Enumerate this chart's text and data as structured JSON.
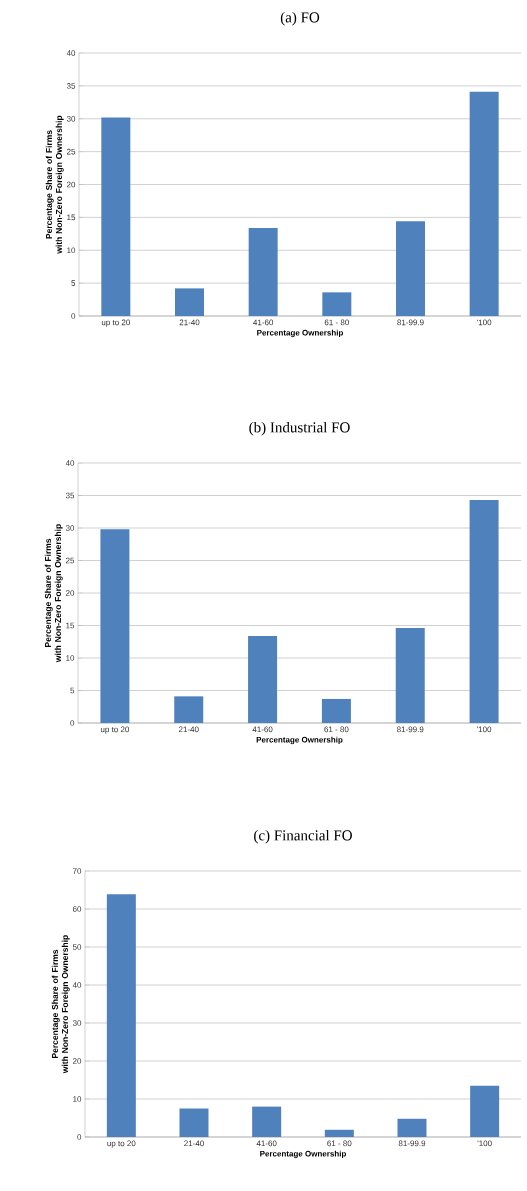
{
  "chart_data": [
    {
      "type": "bar",
      "title": "(a) FO",
      "xlabel": "Percentage Ownership",
      "ylabel": "Percentage Share of Firms\nwith Non-Zero Foreign Ownership",
      "categories": [
        "up to 20",
        "21-40",
        "41-60",
        "61 - 80",
        "81-99.9",
        "'100"
      ],
      "values": [
        30.2,
        4.2,
        13.4,
        3.6,
        14.4,
        34.1
      ],
      "color": "#4f81bd",
      "ylim": [
        0,
        40
      ],
      "yticks": [
        0,
        5,
        10,
        15,
        20,
        25,
        30,
        35,
        40
      ],
      "grid": "y"
    },
    {
      "type": "bar",
      "title": "(b) Industrial FO",
      "xlabel": "Percentage Ownership",
      "ylabel": "Percentage Share of Firms\nwith Non-Zero Foreign Ownership",
      "categories": [
        "up to 20",
        "21-40",
        "41-60",
        "61 - 80",
        "81-99.9",
        "'100"
      ],
      "values": [
        29.8,
        4.1,
        13.4,
        3.7,
        14.6,
        34.3
      ],
      "color": "#4f81bd",
      "ylim": [
        0,
        40
      ],
      "yticks": [
        0,
        5,
        10,
        15,
        20,
        25,
        30,
        35,
        40
      ],
      "grid": "y"
    },
    {
      "type": "bar",
      "title": "(c) Financial FO",
      "xlabel": "Percentage Ownership",
      "ylabel": "Percentage Share of Firms\nwith Non-Zero Foreign Ownership",
      "categories": [
        "up to 20",
        "21-40",
        "41-60",
        "61 - 80",
        "81-99.9",
        "'100"
      ],
      "values": [
        63.9,
        7.5,
        8.0,
        1.9,
        4.8,
        13.5
      ],
      "color": "#4f81bd",
      "ylim": [
        0,
        70
      ],
      "yticks": [
        0,
        10,
        20,
        30,
        40,
        50,
        60,
        70
      ],
      "grid": "y"
    }
  ]
}
